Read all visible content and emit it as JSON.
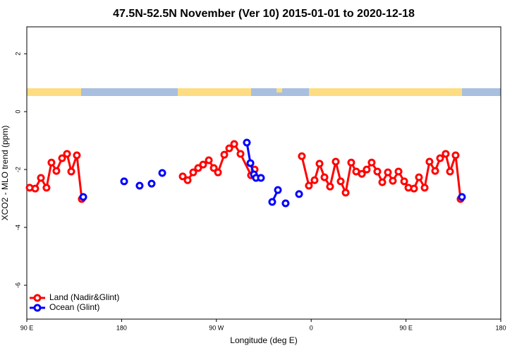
{
  "chart_data": {
    "type": "line",
    "title": "47.5N-52.5N November (Ver 10)   2015-01-01 to 2020-12-18",
    "xlabel": "Longitude (deg E)",
    "ylabel": "XCO2 - MLO trend (ppm)",
    "xlim": [
      90,
      540
    ],
    "ylim": [
      -7.17,
      2.93
    ],
    "xticks": [
      {
        "value": 90,
        "label": "90 E"
      },
      180,
      {
        "value": 270,
        "label": "90 W"
      },
      {
        "value": 360,
        "label": "0"
      },
      {
        "value": 450,
        "label": "90 E"
      },
      {
        "value": 540,
        "label": "180"
      }
    ],
    "yticks": [
      2,
      0,
      -2,
      -4,
      -6
    ],
    "legend": "bottom-left",
    "series": [
      {
        "name": "Land (Nadir&Glint)",
        "color": "#ff0000",
        "x": [
          92.7,
          98.0,
          103.4,
          108.7,
          113.4,
          118.1,
          123.5,
          128.2,
          132.2,
          137.5,
          142.2,
          null,
          238.0,
          242.7,
          248.0,
          252.7,
          257.4,
          262.8,
          267.5,
          271.5,
          277.5,
          282.2,
          286.9,
          292.9,
          302.9,
          306.3,
          null,
          351.1,
          357.8,
          363.2,
          367.9,
          372.6,
          377.9,
          383.3,
          388.0,
          392.7,
          398.0,
          402.7,
          408.1,
          412.7,
          417.4,
          422.8,
          427.5,
          432.8,
          437.5,
          442.9,
          448.3,
          452.3,
          457.6,
          462.3,
          467.7,
          472.3,
          477.7,
          482.4,
          487.7,
          491.8,
          497.1,
          501.8
        ],
        "values": [
          -2.63,
          -2.66,
          -2.29,
          -2.63,
          -1.76,
          -2.05,
          -1.61,
          -1.46,
          -2.07,
          -1.51,
          -3.02,
          null,
          -2.24,
          -2.37,
          -2.1,
          -1.95,
          -1.83,
          -1.68,
          -1.95,
          -2.1,
          -1.49,
          -1.27,
          -1.12,
          -1.46,
          -2.2,
          -2.0,
          null,
          -1.54,
          -2.56,
          -2.37,
          -1.8,
          -2.27,
          -2.59,
          -1.73,
          -2.41,
          -2.8,
          -1.76,
          -2.07,
          -2.15,
          -2.0,
          -1.76,
          -2.07,
          -2.44,
          -2.1,
          -2.39,
          -2.07,
          -2.41,
          -2.63,
          -2.66,
          -2.27,
          -2.63,
          -1.73,
          -2.05,
          -1.61,
          -1.46,
          -2.07,
          -1.51,
          -3.02
        ]
      },
      {
        "name": "Ocean (Glint)",
        "color": "#0000ff",
        "x": [
          143.6,
          null,
          182.4,
          null,
          197.1,
          null,
          208.5,
          null,
          218.6,
          null,
          298.9,
          302.3,
          305.6,
          307.6,
          312.3,
          null,
          323.0,
          328.4,
          null,
          335.7,
          null,
          348.5,
          null,
          503.1
        ],
        "values": [
          -2.95,
          null,
          -2.41,
          null,
          -2.56,
          null,
          -2.49,
          null,
          -2.12,
          null,
          -1.07,
          -1.78,
          -2.17,
          -2.29,
          -2.29,
          null,
          -3.12,
          -2.71,
          null,
          -3.17,
          null,
          -2.85,
          null,
          -2.95
        ]
      }
    ]
  }
}
